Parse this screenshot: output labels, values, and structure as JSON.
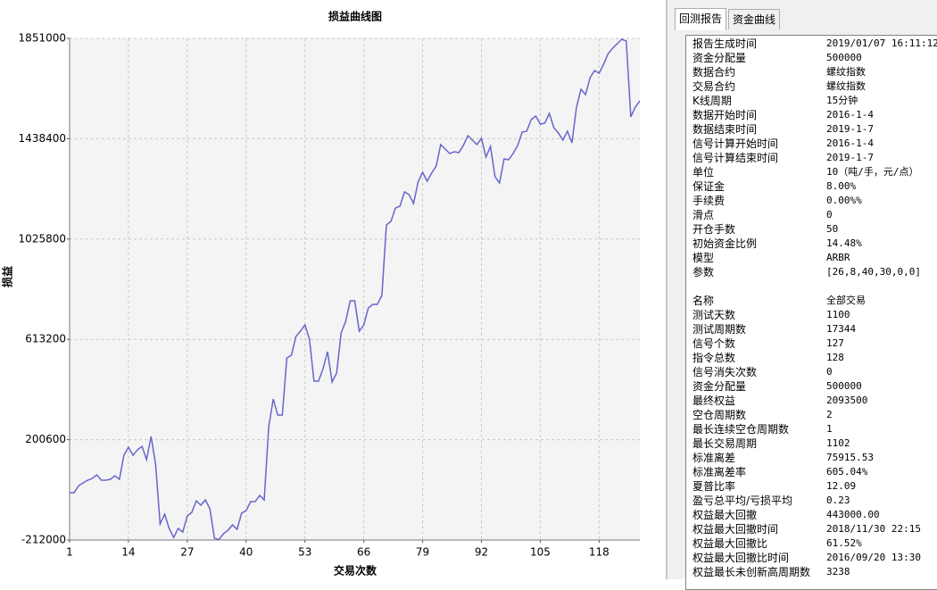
{
  "chart_data": {
    "type": "line",
    "title": "损益曲线图",
    "x_label": "交易次数",
    "y_label": "损益",
    "color": "#6666cc",
    "grid": true,
    "xlim": [
      1,
      127
    ],
    "xticks": [
      1,
      14,
      27,
      40,
      53,
      66,
      79,
      92,
      105,
      118
    ],
    "ylim": [
      -212000,
      1851000
    ],
    "yticks": [
      -212000,
      200600,
      613200,
      1025800,
      1438400,
      1851000
    ],
    "x": [
      1,
      2,
      3,
      4,
      5,
      6,
      7,
      8,
      9,
      10,
      11,
      12,
      13,
      14,
      15,
      16,
      17,
      18,
      19,
      20,
      21,
      22,
      23,
      24,
      25,
      26,
      27,
      28,
      29,
      30,
      31,
      32,
      33,
      34,
      35,
      36,
      37,
      38,
      39,
      40,
      41,
      42,
      43,
      44,
      45,
      46,
      47,
      48,
      49,
      50,
      51,
      52,
      53,
      54,
      55,
      56,
      57,
      58,
      59,
      60,
      61,
      62,
      63,
      64,
      65,
      66,
      67,
      68,
      69,
      70,
      71,
      72,
      73,
      74,
      75,
      76,
      77,
      78,
      79,
      80,
      81,
      82,
      83,
      84,
      85,
      86,
      87,
      88,
      89,
      90,
      91,
      92,
      93,
      94,
      95,
      96,
      97,
      98,
      99,
      100,
      101,
      102,
      103,
      104,
      105,
      106,
      107,
      108,
      109,
      110,
      111,
      112,
      113,
      114,
      115,
      116,
      117,
      118,
      119,
      120,
      121,
      122,
      123,
      124,
      125,
      126,
      127
    ],
    "values": [
      -17500,
      -17500,
      11800,
      22800,
      33900,
      41200,
      55900,
      33900,
      33900,
      37500,
      52200,
      37500,
      136600,
      169700,
      136600,
      158700,
      173400,
      118300,
      213700,
      99900,
      -146000,
      -105600,
      -164400,
      -201100,
      -164400,
      -179100,
      -113000,
      -98300,
      -50600,
      -68900,
      -46900,
      -83600,
      -204800,
      -210000,
      -186400,
      -171700,
      -149700,
      -168100,
      -102000,
      -91000,
      -54200,
      -54200,
      -28600,
      -46900,
      254100,
      367900,
      301800,
      301800,
      536800,
      547800,
      624900,
      646900,
      672600,
      613900,
      441300,
      441300,
      492700,
      562500,
      437700,
      474400,
      639600,
      687300,
      771700,
      771700,
      646900,
      672600,
      742400,
      757000,
      757000,
      793800,
      1083800,
      1098400,
      1153500,
      1160900,
      1219600,
      1208600,
      1171900,
      1260000,
      1300400,
      1263600,
      1296700,
      1326000,
      1414200,
      1395800,
      1377400,
      1384800,
      1381100,
      1410500,
      1450900,
      1432500,
      1414200,
      1439800,
      1362800,
      1406800,
      1282000,
      1256300,
      1355400,
      1351700,
      1377400,
      1410500,
      1465500,
      1469200,
      1516900,
      1531600,
      1498600,
      1502300,
      1542600,
      1483900,
      1461900,
      1432500,
      1469200,
      1421500,
      1568300,
      1641800,
      1619700,
      1689500,
      1718800,
      1707800,
      1744500,
      1788600,
      1810600,
      1829000,
      1847300,
      1840000,
      1528000,
      1568300,
      1594000
    ]
  },
  "report": {
    "tabs": [
      "回测报告",
      "资金曲线"
    ],
    "groups": [
      [
        [
          "报告生成时间",
          "2019/01/07 16:11:12"
        ],
        [
          "资金分配量",
          "500000"
        ],
        [
          "数据合约",
          "螺纹指数"
        ],
        [
          "交易合约",
          "螺纹指数"
        ],
        [
          "K线周期",
          "15分钟"
        ],
        [
          "数据开始时间",
          "2016-1-4"
        ],
        [
          "数据结束时间",
          "2019-1-7"
        ],
        [
          "信号计算开始时间",
          "2016-1-4"
        ],
        [
          "信号计算结束时间",
          "2019-1-7"
        ],
        [
          "单位",
          "10（吨/手，元/点）"
        ],
        [
          "保证金",
          "8.00%"
        ],
        [
          "手续费",
          "0.00%%"
        ],
        [
          "滑点",
          "0"
        ],
        [
          "开仓手数",
          "50"
        ],
        [
          "初始资金比例",
          "14.48%"
        ],
        [
          "模型",
          "ARBR"
        ],
        [
          "参数",
          "[26,8,40,30,0,0]"
        ]
      ],
      [
        [
          "名称",
          "全部交易"
        ],
        [
          "测试天数",
          "1100"
        ],
        [
          "测试周期数",
          "17344"
        ],
        [
          "信号个数",
          "127"
        ],
        [
          "指令总数",
          "128"
        ],
        [
          "信号消失次数",
          "0"
        ],
        [
          "资金分配量",
          "500000"
        ],
        [
          "最终权益",
          "2093500"
        ],
        [
          "空仓周期数",
          "2"
        ],
        [
          "最长连续空仓周期数",
          "1"
        ],
        [
          "最长交易周期",
          "1102"
        ],
        [
          "标准离差",
          "75915.53"
        ],
        [
          "标准离差率",
          "605.04%"
        ],
        [
          "夏普比率",
          "12.09"
        ],
        [
          "盈亏总平均/亏损平均",
          "0.23"
        ],
        [
          "权益最大回撤",
          "443000.00"
        ],
        [
          "权益最大回撤时间",
          "2018/11/30 22:15"
        ],
        [
          "权益最大回撤比",
          "61.52%"
        ],
        [
          "权益最大回撤比时间",
          "2016/09/20 13:30"
        ],
        [
          "权益最长未创新高周期数",
          "3238"
        ]
      ]
    ]
  }
}
